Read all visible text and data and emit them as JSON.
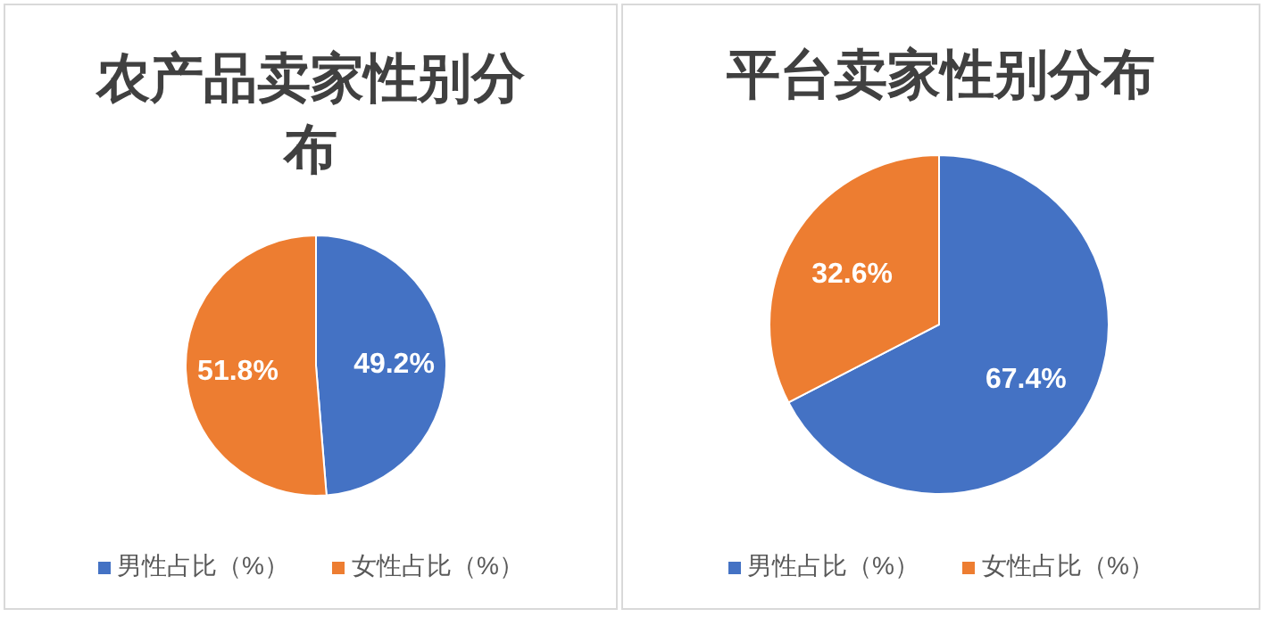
{
  "chart_data": [
    {
      "type": "pie",
      "title": "农产品卖家性别分布",
      "categories": [
        "男性占比（%）",
        "女性占比（%）"
      ],
      "values": [
        49.2,
        51.8
      ],
      "colors": [
        "#4472c4",
        "#ed7d31"
      ],
      "value_labels": [
        "49.2%",
        "51.8%"
      ],
      "legend": "bottom"
    },
    {
      "type": "pie",
      "title": "平台卖家性别分布",
      "categories": [
        "男性占比（%）",
        "女性占比（%）"
      ],
      "values": [
        67.4,
        32.6
      ],
      "colors": [
        "#4472c4",
        "#ed7d31"
      ],
      "value_labels": [
        "67.4%",
        "32.6%"
      ],
      "legend": "bottom"
    }
  ]
}
